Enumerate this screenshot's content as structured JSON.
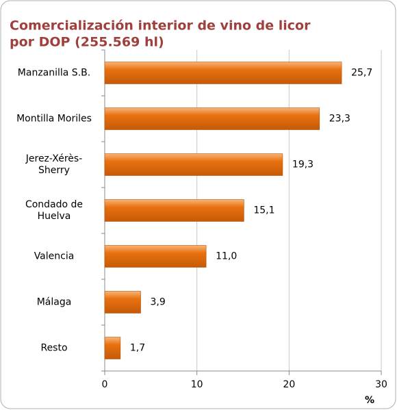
{
  "chart_data": {
    "type": "bar",
    "orientation": "horizontal",
    "title": [
      "Comercialización interior de vino de licor",
      "por DOP (255.569 hl)"
    ],
    "categories": [
      "Manzanilla S.B.",
      "Montilla Moriles",
      "Jerez-Xérès-Sherry",
      "Condado de Huelva",
      "Valencia",
      "Málaga",
      "Resto"
    ],
    "values": [
      25.7,
      23.3,
      19.3,
      15.1,
      11.0,
      3.9,
      1.7
    ],
    "value_labels": [
      "25,7",
      "23,3",
      "19,3",
      "15,1",
      "11,0",
      "3,9",
      "1,7"
    ],
    "color": "#e8710f",
    "x_label": "%",
    "xlim": [
      0,
      30
    ],
    "xticks": [
      0,
      10,
      20,
      30
    ],
    "grid": true
  }
}
